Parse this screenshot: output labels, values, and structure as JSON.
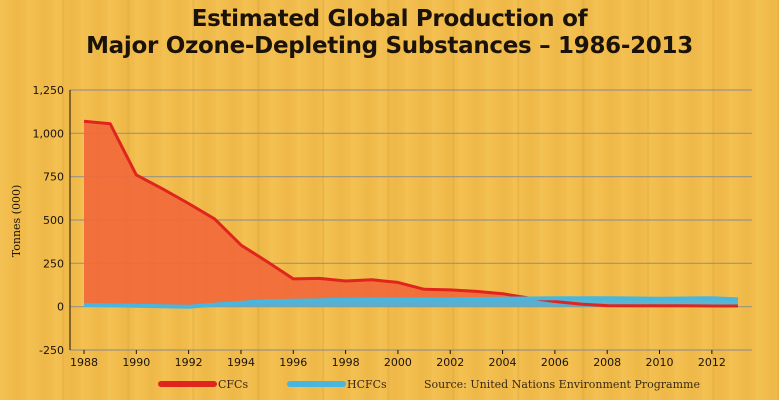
{
  "colors": {
    "background": "#f2bd4c",
    "cfc_line": "#e0251d",
    "cfc_fill": "#f06b3a",
    "hcfc_line": "#49b6df",
    "grid": "#8d8d8d"
  },
  "chart_data": {
    "type": "area",
    "title_lines": [
      "Estimated Global Production of",
      "Major Ozone-Depleting Substances – 1986-2013"
    ],
    "xlabel": "",
    "ylabel": "Tonnes (000)",
    "xlim": [
      1988,
      2013
    ],
    "ylim": [
      -250,
      1250
    ],
    "x_ticks": [
      1988,
      1990,
      1992,
      1994,
      1996,
      1998,
      2000,
      2002,
      2004,
      2006,
      2008,
      2010,
      2012
    ],
    "x_tick_labels": [
      "1988",
      "1990",
      "1992",
      "1994",
      "1996",
      "1998",
      "2000",
      "2002",
      "2004",
      "2006",
      "2008",
      "2010",
      "2012"
    ],
    "y_ticks": [
      -250,
      0,
      250,
      500,
      750,
      1000,
      1250
    ],
    "y_tick_labels": [
      "-250",
      "0",
      "250",
      "500",
      "750",
      "1,000",
      "1,250"
    ],
    "grid": true,
    "legend_placement": "bottom",
    "x": [
      1988,
      1989,
      1990,
      1991,
      1992,
      1993,
      1994,
      1995,
      1996,
      1997,
      1998,
      1999,
      2000,
      2001,
      2002,
      2003,
      2004,
      2005,
      2006,
      2007,
      2008,
      2009,
      2010,
      2011,
      2012,
      2013
    ],
    "series": [
      {
        "name": "CFCs",
        "values": [
          1070,
          1055,
          760,
          680,
          595,
          505,
          355,
          260,
          160,
          163,
          148,
          155,
          140,
          100,
          97,
          88,
          75,
          50,
          30,
          15,
          6,
          5,
          5,
          5,
          4,
          4
        ]
      },
      {
        "name": "HCFCs",
        "values": [
          10,
          8,
          5,
          2,
          -1,
          12,
          22,
          32,
          34,
          36,
          40,
          42,
          42,
          42,
          43,
          44,
          46,
          47,
          48,
          49,
          48,
          47,
          46,
          47,
          48,
          42
        ]
      }
    ],
    "source": "Source: United Nations Environment Programme"
  }
}
